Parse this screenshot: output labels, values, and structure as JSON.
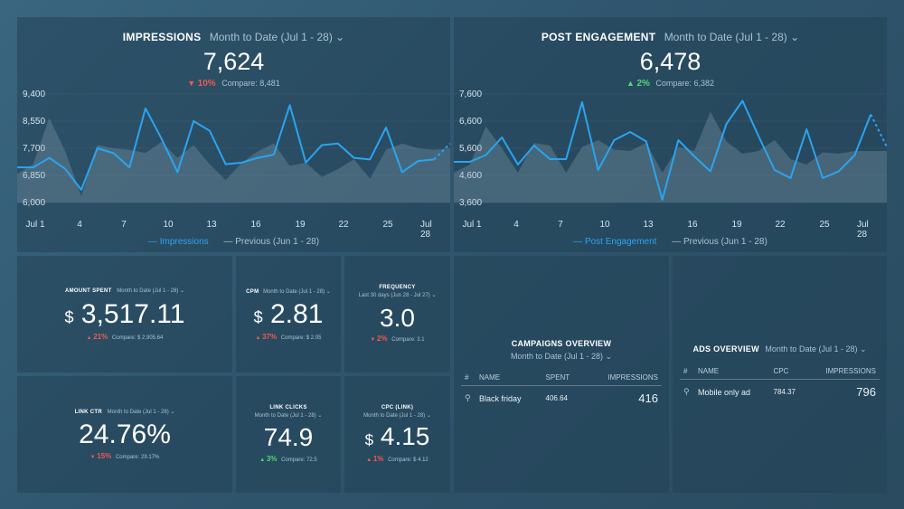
{
  "impressions": {
    "title": "IMPRESSIONS",
    "date_range": "Month to Date (Jul 1 - 28)",
    "value": "7,624",
    "change": "10%",
    "compare": "Compare: 8,481",
    "y_ticks": [
      "9,400",
      "8,550",
      "7,700",
      "6,850",
      "6,000"
    ],
    "x_ticks": [
      "Jul 1",
      "4",
      "7",
      "10",
      "13",
      "16",
      "19",
      "22",
      "25",
      "Jul 28"
    ],
    "legend_current": "Impressions",
    "legend_previous": "Previous (Jun 1 - 28)"
  },
  "post_engagement": {
    "title": "POST ENGAGEMENT",
    "date_range": "Month to Date (Jul 1 - 28)",
    "value": "6,478",
    "change": "2%",
    "compare": "Compare: 6,382",
    "y_ticks": [
      "7,600",
      "6,600",
      "5,600",
      "4,600",
      "3,600"
    ],
    "x_ticks": [
      "Jul 1",
      "4",
      "7",
      "10",
      "13",
      "16",
      "19",
      "22",
      "25",
      "Jul 28"
    ],
    "legend_current": "Post Engagement",
    "legend_previous": "Previous (Jun 1 - 28)"
  },
  "chart_data": [
    {
      "type": "line",
      "title": "IMPRESSIONS",
      "x": [
        "Jul 1",
        "Jul 2",
        "Jul 3",
        "Jul 4",
        "Jul 5",
        "Jul 6",
        "Jul 7",
        "Jul 8",
        "Jul 9",
        "Jul 10",
        "Jul 11",
        "Jul 12",
        "Jul 13",
        "Jul 14",
        "Jul 15",
        "Jul 16",
        "Jul 17",
        "Jul 18",
        "Jul 19",
        "Jul 20",
        "Jul 21",
        "Jul 22",
        "Jul 23",
        "Jul 24",
        "Jul 25",
        "Jul 26",
        "Jul 27",
        "Jul 28"
      ],
      "series": [
        {
          "name": "Impressions",
          "values": [
            7100,
            7100,
            7400,
            7050,
            6400,
            7700,
            7550,
            7100,
            8950,
            8000,
            6950,
            8550,
            8250,
            7200,
            7250,
            7400,
            7500,
            9050,
            7250,
            7800,
            7850,
            7400,
            7350,
            8350,
            6950,
            7300,
            7350,
            7850
          ]
        },
        {
          "name": "Previous (Jun 1 - 28)",
          "values": [
            6900,
            7200,
            8650,
            7600,
            6200,
            7800,
            7700,
            7650,
            7550,
            7900,
            7400,
            7800,
            7200,
            6700,
            7250,
            7600,
            7850,
            7150,
            7250,
            6800,
            7050,
            7350,
            6750,
            7650,
            7850,
            7700,
            7650,
            7700
          ]
        }
      ],
      "ylim": [
        6000,
        9400
      ],
      "legend": "bottom"
    },
    {
      "type": "line",
      "title": "POST ENGAGEMENT",
      "x": [
        "Jul 1",
        "Jul 2",
        "Jul 3",
        "Jul 4",
        "Jul 5",
        "Jul 6",
        "Jul 7",
        "Jul 8",
        "Jul 9",
        "Jul 10",
        "Jul 11",
        "Jul 12",
        "Jul 13",
        "Jul 14",
        "Jul 15",
        "Jul 16",
        "Jul 17",
        "Jul 18",
        "Jul 19",
        "Jul 20",
        "Jul 21",
        "Jul 22",
        "Jul 23",
        "Jul 24",
        "Jul 25",
        "Jul 26",
        "Jul 27",
        "Jul 28"
      ],
      "series": [
        {
          "name": "Post Engagement",
          "values": [
            5100,
            5100,
            5350,
            6000,
            5000,
            5700,
            5200,
            5200,
            7300,
            4800,
            5900,
            6200,
            5850,
            3700,
            5900,
            5300,
            4750,
            6500,
            7350,
            6050,
            4800,
            4500,
            6300,
            4500,
            4750,
            5350,
            6850,
            5650
          ]
        },
        {
          "name": "Previous (Jun 1 - 28)",
          "values": [
            4700,
            5000,
            6400,
            5600,
            4700,
            5800,
            5700,
            4700,
            5650,
            5900,
            5550,
            5500,
            5800,
            4700,
            5650,
            5500,
            6950,
            5850,
            5400,
            5500,
            5900,
            5200,
            5000,
            5450,
            5400,
            5500,
            5500,
            5500
          ]
        }
      ],
      "ylim": [
        3600,
        7600
      ],
      "legend": "bottom"
    }
  ],
  "amount_spent": {
    "title": "AMOUNT SPENT",
    "date_range": "Month to Date (Jul 1 - 28)",
    "currency": "$",
    "value": "3,517.11",
    "change": "21%",
    "compare": "Compare: $ 2,905.64"
  },
  "cpm": {
    "title": "CPM",
    "date_range": "Month to Date (Jul 1 - 28)",
    "currency": "$",
    "value": "2.81",
    "change": "37%",
    "compare": "Compare: $ 2.05"
  },
  "frequency": {
    "title": "FREQUENCY",
    "date_range": "Last 30 days (Jun 28 - Jul 27)",
    "value": "3.0",
    "change": "2%",
    "compare": "Compare: 3.1"
  },
  "link_ctr": {
    "title": "LINK CTR",
    "date_range": "Month to Date (Jul 1 - 28)",
    "value": "24.76%",
    "change": "15%",
    "compare": "Compare: 29.17%"
  },
  "link_clicks": {
    "title": "LINK CLICKS",
    "date_range": "Month to Date (Jul 1 - 28)",
    "value": "74.9",
    "change": "3%",
    "compare": "Compare: 72.5"
  },
  "cpc_link": {
    "title": "CPC (LINK)",
    "date_range": "Month to Date (Jul 1 - 28)",
    "currency": "$",
    "value": "4.15",
    "change": "1%",
    "compare": "Compare: $ 4.12"
  },
  "campaigns": {
    "title": "CAMPAIGNS OVERVIEW",
    "date_range": "Month to Date (Jul 1 - 28)",
    "columns": [
      "#",
      "NAME",
      "SPENT",
      "IMPRESSIONS"
    ],
    "rows": [
      {
        "name": "Black friday",
        "spent": "406.64",
        "impressions": "416"
      }
    ]
  },
  "ads": {
    "title": "ADS OVERVIEW",
    "date_range": "Month to Date (Jul 1 - 28)",
    "columns": [
      "#",
      "NAME",
      "CPC",
      "IMPRESSIONS"
    ],
    "rows": [
      {
        "name": "Mobile only ad",
        "cpc": "784.37",
        "impressions": "796"
      }
    ]
  },
  "colors": {
    "accent": "#2ba4f0",
    "up": "#57d47a",
    "down": "#ef5a4f"
  }
}
